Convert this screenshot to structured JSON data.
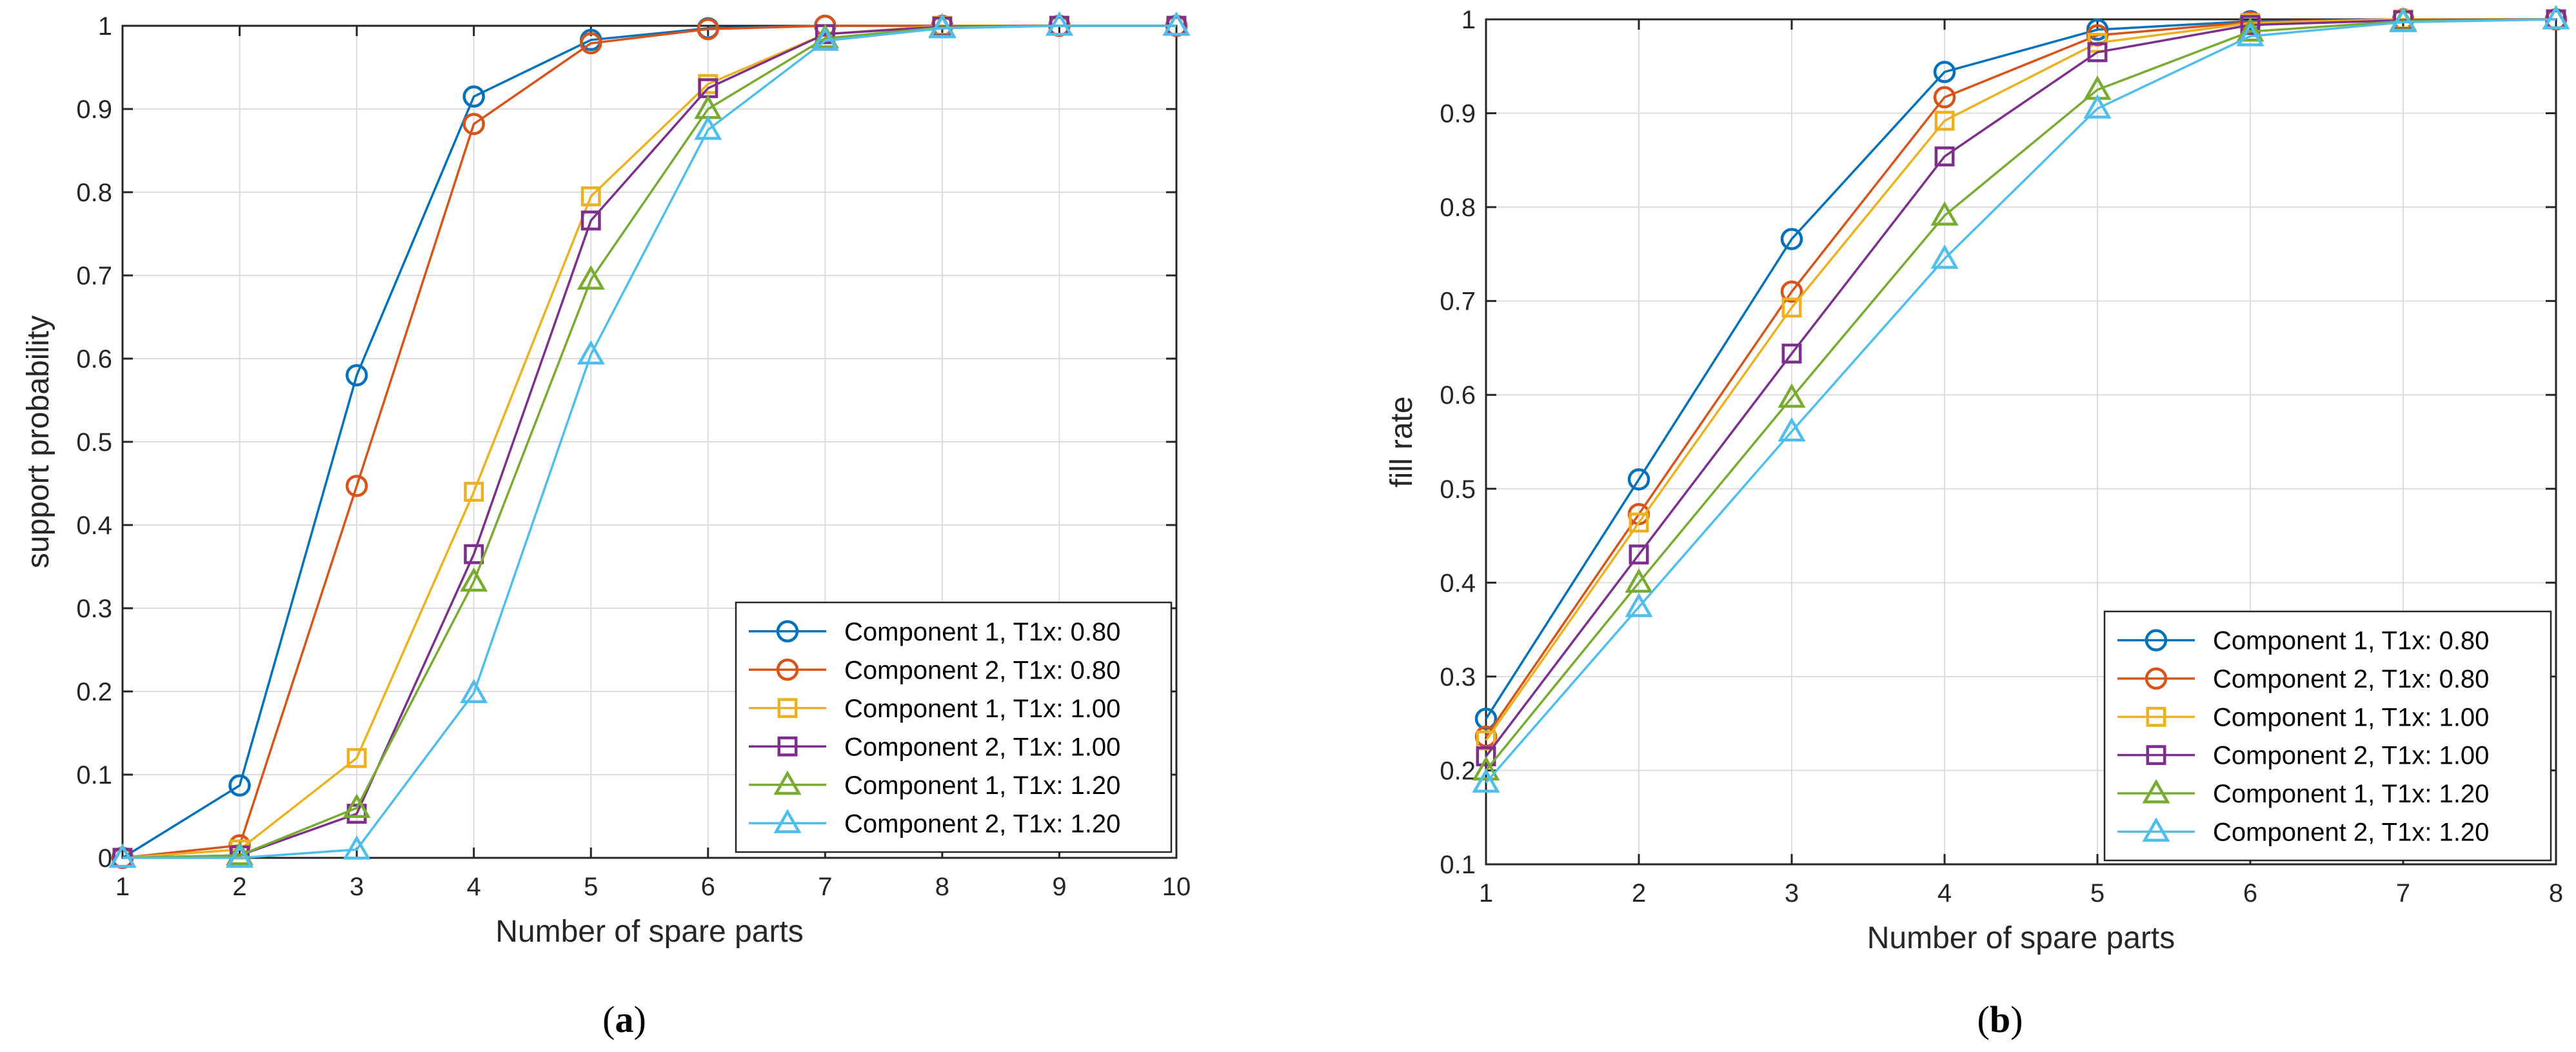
{
  "chart_data": [
    {
      "type": "line",
      "panel": "a",
      "caption_open": "(",
      "caption_letter": "a",
      "caption_close": ")",
      "xlabel": "Number of spare parts",
      "ylabel": "support probability",
      "x": [
        1,
        2,
        3,
        4,
        5,
        6,
        7,
        8,
        9,
        10
      ],
      "xlim": [
        1,
        10
      ],
      "ylim": [
        0,
        1
      ],
      "xticks": [
        1,
        2,
        3,
        4,
        5,
        6,
        7,
        8,
        9,
        10
      ],
      "xtick_labels": [
        "1",
        "2",
        "3",
        "4",
        "5",
        "6",
        "7",
        "8",
        "9",
        "10"
      ],
      "yticks": [
        0,
        0.1,
        0.2,
        0.3,
        0.4,
        0.5,
        0.6,
        0.7,
        0.8,
        0.9,
        1
      ],
      "ytick_labels": [
        "0",
        "0.1",
        "0.2",
        "0.3",
        "0.4",
        "0.5",
        "0.6",
        "0.7",
        "0.8",
        "0.9",
        "1"
      ],
      "grid": true,
      "legend_position": "bottom-right",
      "series": [
        {
          "name": "Component 1, T1x: 0.80",
          "color": "#0072BD",
          "marker": "circle",
          "values": [
            0.0,
            0.087,
            0.58,
            0.915,
            0.983,
            0.997,
            1.0,
            1.0,
            1.0,
            1.0
          ]
        },
        {
          "name": "Component 2, T1x: 0.80",
          "color": "#D95319",
          "marker": "circle",
          "values": [
            0.0,
            0.015,
            0.447,
            0.882,
            0.979,
            0.996,
            1.0,
            1.0,
            1.0,
            1.0
          ]
        },
        {
          "name": "Component 1, T1x: 1.00",
          "color": "#EDB120",
          "marker": "square",
          "values": [
            0.0,
            0.01,
            0.12,
            0.44,
            0.795,
            0.93,
            0.99,
            1.0,
            1.0,
            1.0
          ]
        },
        {
          "name": "Component 2, T1x: 1.00",
          "color": "#7E2F8E",
          "marker": "square",
          "values": [
            0.0,
            0.003,
            0.053,
            0.365,
            0.766,
            0.925,
            0.99,
            0.999,
            1.0,
            1.0
          ]
        },
        {
          "name": "Component 1, T1x: 1.20",
          "color": "#77AC30",
          "marker": "triangle",
          "values": [
            0.0,
            0.003,
            0.06,
            0.332,
            0.695,
            0.9,
            0.985,
            0.998,
            1.0,
            1.0
          ]
        },
        {
          "name": "Component 2, T1x: 1.20",
          "color": "#4DBEEE",
          "marker": "triangle",
          "values": [
            0.0,
            0.0,
            0.01,
            0.198,
            0.605,
            0.875,
            0.982,
            0.997,
            1.0,
            1.0
          ]
        }
      ]
    },
    {
      "type": "line",
      "panel": "b",
      "caption_open": "(",
      "caption_letter": "b",
      "caption_close": ")",
      "xlabel": "Number of spare parts",
      "ylabel": "fill rate",
      "x": [
        1,
        2,
        3,
        4,
        5,
        6,
        7,
        8
      ],
      "xlim": [
        1,
        8
      ],
      "ylim": [
        0.1,
        1
      ],
      "xticks": [
        1,
        2,
        3,
        4,
        5,
        6,
        7,
        8
      ],
      "xtick_labels": [
        "1",
        "2",
        "3",
        "4",
        "5",
        "6",
        "7",
        "8"
      ],
      "yticks": [
        0.1,
        0.2,
        0.3,
        0.4,
        0.5,
        0.6,
        0.7,
        0.8,
        0.9,
        1
      ],
      "ytick_labels": [
        "0.1",
        "0.2",
        "0.3",
        "0.4",
        "0.5",
        "0.6",
        "0.7",
        "0.8",
        "0.9",
        "1"
      ],
      "grid": true,
      "legend_position": "bottom-right",
      "series": [
        {
          "name": "Component 1, T1x: 0.80",
          "color": "#0072BD",
          "marker": "circle",
          "values": [
            0.255,
            0.51,
            0.766,
            0.944,
            0.989,
            0.998,
            1.0,
            1.0
          ]
        },
        {
          "name": "Component 2, T1x: 0.80",
          "color": "#D95319",
          "marker": "circle",
          "values": [
            0.236,
            0.473,
            0.71,
            0.917,
            0.983,
            0.997,
            1.0,
            1.0
          ]
        },
        {
          "name": "Component 1, T1x: 1.00",
          "color": "#EDB120",
          "marker": "square",
          "values": [
            0.232,
            0.464,
            0.693,
            0.892,
            0.975,
            0.996,
            1.0,
            1.0
          ]
        },
        {
          "name": "Component 2, T1x: 1.00",
          "color": "#7E2F8E",
          "marker": "square",
          "values": [
            0.215,
            0.43,
            0.644,
            0.854,
            0.965,
            0.994,
            0.999,
            1.0
          ]
        },
        {
          "name": "Component 1, T1x: 1.20",
          "color": "#77AC30",
          "marker": "triangle",
          "values": [
            0.2,
            0.4,
            0.597,
            0.791,
            0.925,
            0.987,
            0.998,
            1.0
          ]
        },
        {
          "name": "Component 2, T1x: 1.20",
          "color": "#4DBEEE",
          "marker": "triangle",
          "values": [
            0.187,
            0.374,
            0.561,
            0.745,
            0.905,
            0.982,
            0.997,
            1.0
          ]
        }
      ]
    }
  ]
}
